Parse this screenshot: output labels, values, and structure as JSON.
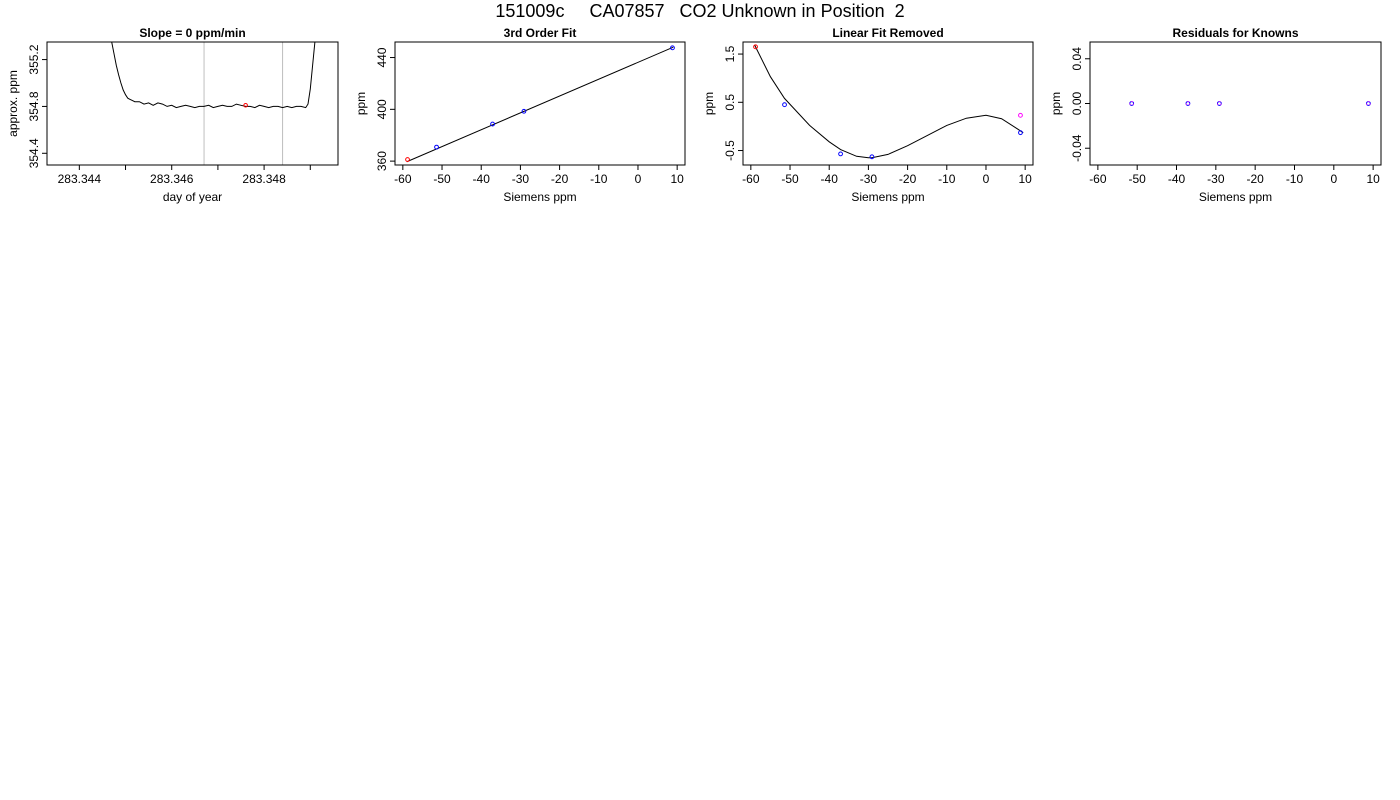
{
  "title": "151009c     CA07857   CO2 Unknown in Position  2",
  "colors": {
    "line": "#000000",
    "frame": "#000000",
    "vline": "#bebebe",
    "known": "#0000ff",
    "fitted": "#ff0000",
    "unknown": "#ff00ff"
  },
  "chart_data": [
    {
      "type": "line",
      "title": "Slope =  0  ppm/min",
      "xlabel": "day of year",
      "ylabel": "approx. ppm",
      "xlim": [
        283.3433,
        283.3496
      ],
      "ylim": [
        354.3,
        355.35
      ],
      "xticks": [
        283.344,
        283.345,
        283.346,
        283.347,
        283.348,
        283.349
      ],
      "xtick_labels": [
        "283.344",
        "",
        "283.346",
        "",
        "283.348",
        ""
      ],
      "yticks": [
        354.4,
        354.8,
        355.2
      ],
      "ytick_labels": [
        "354.4",
        "354.8",
        "355.2"
      ],
      "vlines": [
        283.3467,
        283.3484
      ],
      "marker": {
        "x": 283.3476,
        "y": 354.81
      },
      "series": [
        {
          "x": [
            283.3447,
            283.34475,
            283.3448,
            283.34485,
            283.3449,
            283.34495,
            283.345,
            283.34505,
            283.3451,
            283.34515,
            283.3452,
            283.3453,
            283.3454,
            283.3455,
            283.3456,
            283.3457,
            283.3458,
            283.3459,
            283.346,
            283.3461,
            283.3462,
            283.3463,
            283.3464,
            283.3465,
            283.3466,
            283.3467,
            283.3468,
            283.3469,
            283.347,
            283.3471,
            283.3472,
            283.3473,
            283.3474,
            283.3475,
            283.3476,
            283.3477,
            283.3478,
            283.3479,
            283.348,
            283.3481,
            283.3482,
            283.3483,
            283.3484,
            283.3485,
            283.3486,
            283.3487,
            283.3488,
            283.3489,
            283.34895,
            283.349,
            283.34905,
            283.3491
          ],
          "y": [
            355.35,
            355.25,
            355.15,
            355.07,
            355.0,
            354.94,
            354.9,
            354.87,
            354.86,
            354.85,
            354.84,
            354.84,
            354.82,
            354.83,
            354.81,
            354.83,
            354.82,
            354.8,
            354.81,
            354.79,
            354.8,
            354.81,
            354.8,
            354.79,
            354.8,
            354.8,
            354.81,
            354.79,
            354.8,
            354.81,
            354.8,
            354.8,
            354.82,
            354.81,
            354.8,
            354.8,
            354.79,
            354.81,
            354.8,
            354.79,
            354.8,
            354.8,
            354.79,
            354.8,
            354.79,
            354.8,
            354.8,
            354.79,
            354.82,
            354.95,
            355.15,
            355.35
          ]
        }
      ]
    },
    {
      "type": "scatter",
      "title": "3rd Order Fit",
      "xlabel": "Siemens ppm",
      "ylabel": "ppm",
      "xlim": [
        -62,
        12
      ],
      "ylim": [
        357,
        452
      ],
      "xticks": [
        -60,
        -50,
        -40,
        -30,
        -20,
        -10,
        0,
        10
      ],
      "xtick_labels": [
        "-60",
        "-50",
        "-40",
        "-30",
        "-20",
        "-10",
        "0",
        "10"
      ],
      "yticks": [
        360,
        400,
        440
      ],
      "ytick_labels": [
        "360",
        "400",
        "440"
      ],
      "fit_line": {
        "x": [
          -59,
          9
        ],
        "y": [
          359.5,
          448
        ]
      },
      "points": [
        {
          "x": -51.4,
          "y": 370.8,
          "kind": "known"
        },
        {
          "x": -37.1,
          "y": 388.6,
          "kind": "known"
        },
        {
          "x": -29.1,
          "y": 398.5,
          "kind": "known"
        },
        {
          "x": 8.8,
          "y": 447.5,
          "kind": "known"
        },
        {
          "x": -58.8,
          "y": 361.2,
          "kind": "fitted"
        }
      ]
    },
    {
      "type": "scatter",
      "title": "Linear Fit Removed",
      "xlabel": "Siemens ppm",
      "ylabel": "ppm",
      "xlim": [
        -62,
        12
      ],
      "ylim": [
        -0.8,
        1.75
      ],
      "xticks": [
        -60,
        -50,
        -40,
        -30,
        -20,
        -10,
        0,
        10
      ],
      "xtick_labels": [
        "-60",
        "-50",
        "-40",
        "-30",
        "-20",
        "-10",
        "0",
        "10"
      ],
      "yticks": [
        -0.5,
        0.5,
        1.5
      ],
      "ytick_labels": [
        "-0.5",
        "0.5",
        "1.5"
      ],
      "curve": {
        "x": [
          -59,
          -55,
          -51.4,
          -45,
          -40,
          -37.1,
          -33,
          -30,
          -29.1,
          -25,
          -20,
          -15,
          -10,
          -5,
          0,
          4,
          8,
          9.5
        ],
        "y": [
          1.68,
          1.03,
          0.58,
          0.02,
          -0.32,
          -0.48,
          -0.62,
          -0.65,
          -0.65,
          -0.58,
          -0.4,
          -0.19,
          0.02,
          0.17,
          0.23,
          0.16,
          -0.05,
          -0.13
        ]
      },
      "points": [
        {
          "x": -58.8,
          "y": 1.65,
          "kind": "fitted"
        },
        {
          "x": -51.4,
          "y": 0.45,
          "kind": "known"
        },
        {
          "x": -37.1,
          "y": -0.57,
          "kind": "known"
        },
        {
          "x": -29.1,
          "y": -0.63,
          "kind": "known"
        },
        {
          "x": 8.8,
          "y": -0.13,
          "kind": "known"
        },
        {
          "x": 8.8,
          "y": 0.23,
          "kind": "unknown"
        }
      ]
    },
    {
      "type": "scatter",
      "title": "Residuals for Knowns",
      "xlabel": "Siemens ppm",
      "ylabel": "ppm",
      "xlim": [
        -62,
        12
      ],
      "ylim": [
        -0.055,
        0.055
      ],
      "xticks": [
        -60,
        -50,
        -40,
        -30,
        -20,
        -10,
        0,
        10
      ],
      "xtick_labels": [
        "-60",
        "-50",
        "-40",
        "-30",
        "-20",
        "-10",
        "0",
        "10"
      ],
      "yticks": [
        -0.04,
        0.0,
        0.04
      ],
      "ytick_labels": [
        "-0.04",
        "0.00",
        "0.04"
      ],
      "points": [
        {
          "x": -51.4,
          "y": 0.0,
          "kind": "residual"
        },
        {
          "x": -37.1,
          "y": 0.0,
          "kind": "residual"
        },
        {
          "x": -29.1,
          "y": 0.0,
          "kind": "residual"
        },
        {
          "x": 8.8,
          "y": 0.0,
          "kind": "residual"
        }
      ]
    }
  ]
}
